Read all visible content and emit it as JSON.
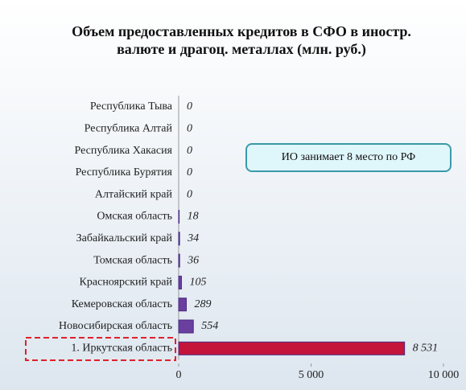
{
  "chart_data": {
    "type": "barh",
    "title": "Объем предоставленных кредитов в СФО в иностр. валюте и драгоц. металлах (млн. руб.)",
    "annotation": "ИО занимает 8 место по РФ",
    "categories": [
      "Республика Тыва",
      "Республика Алтай",
      "Республика Хакасия",
      "Республика Бурятия",
      "Алтайский край",
      "Омская область",
      "Забайкальский край",
      "Томская область",
      "Красноярский край",
      "Кемеровская область",
      "Новосибирская область",
      "1. Иркутская область"
    ],
    "values": [
      0,
      0,
      0,
      0,
      0,
      18,
      34,
      36,
      105,
      289,
      554,
      8531
    ],
    "value_labels": [
      "0",
      "0",
      "0",
      "0",
      "0",
      "18",
      "34",
      "36",
      "105",
      "289",
      "554",
      "8 531"
    ],
    "colors": [
      "#6b3fa0",
      "#6b3fa0",
      "#6b3fa0",
      "#6b3fa0",
      "#6b3fa0",
      "#6b3fa0",
      "#6b3fa0",
      "#6b3fa0",
      "#6b3fa0",
      "#6b3fa0",
      "#6b3fa0",
      "#c4143a"
    ],
    "xlim": [
      0,
      10000
    ],
    "xticks": [
      0,
      {
        "value": 5000,
        "label": "5 000"
      },
      {
        "value": 10000,
        "label": "10 000"
      }
    ]
  }
}
